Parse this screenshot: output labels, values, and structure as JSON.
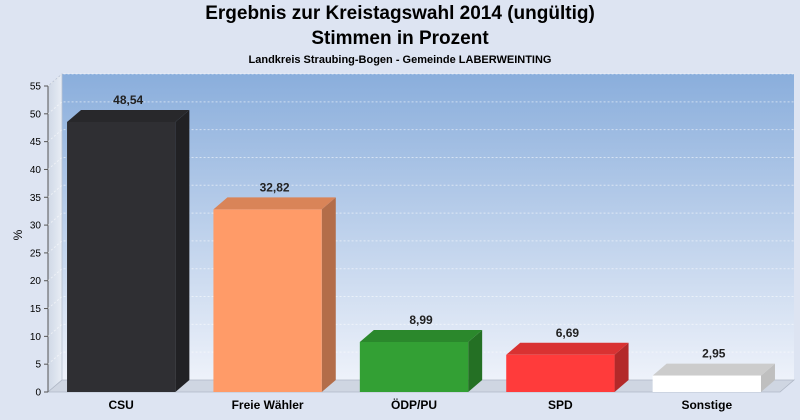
{
  "chart_data": {
    "type": "bar",
    "title": "Ergebnis zur Kreistagswahl 2014 (ungültig)",
    "title_line2": "Stimmen in Prozent",
    "subtitle": "Landkreis Straubing-Bogen - Gemeinde LABERWEINTING",
    "ylabel": "%",
    "ylim": [
      0,
      55
    ],
    "yticks": [
      0,
      5,
      10,
      15,
      20,
      25,
      30,
      35,
      40,
      45,
      50,
      55
    ],
    "grid": true,
    "categories": [
      "CSU",
      "Freie Wähler",
      "ÖDP/PU",
      "SPD",
      "Sonstige"
    ],
    "values": [
      48.54,
      32.82,
      8.99,
      6.69,
      2.95
    ],
    "value_labels": [
      "48,54",
      "32,82",
      "8,99",
      "6,69",
      "2,95"
    ],
    "colors": [
      "#2f2f33",
      "#ff9b68",
      "#33a034",
      "#ff3b3b",
      "#ffffff"
    ]
  }
}
